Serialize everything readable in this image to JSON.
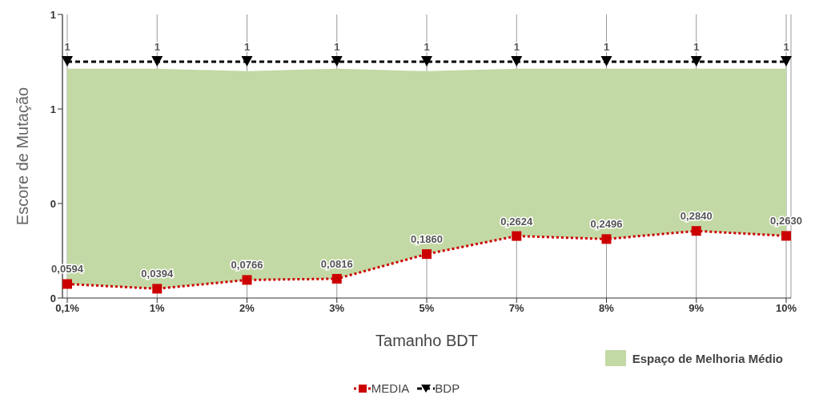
{
  "chart_data": {
    "type": "line",
    "xlabel": "Tamanho BDT",
    "ylabel": "Escore de Mutação",
    "categories": [
      "0,1%",
      "1%",
      "2%",
      "3%",
      "5%",
      "7%",
      "8%",
      "9%",
      "10%"
    ],
    "series": [
      {
        "type": "area",
        "name": "Espaço de Melhoria Médio",
        "color": "#c3d9a5",
        "values": [
          0.97,
          0.97,
          0.96,
          0.97,
          0.96,
          0.97,
          0.97,
          0.97,
          0.97
        ]
      },
      {
        "name": "MEDIA",
        "color": "#cc0000",
        "marker": "square",
        "line_style": "dotted",
        "values": [
          0.0594,
          0.0394,
          0.0766,
          0.0816,
          0.186,
          0.2624,
          0.2496,
          0.284,
          0.263
        ],
        "value_labels": [
          "0,0594",
          "0,0394",
          "0,0766",
          "0,0816",
          "0,1860",
          "0,2624",
          "0,2496",
          "0,2840",
          "0,2630"
        ]
      },
      {
        "name": "BDP",
        "color": "#000000",
        "marker": "triangle",
        "line_style": "dashed",
        "values": [
          1,
          1,
          1,
          1,
          1,
          1,
          1,
          1,
          1
        ],
        "value_labels": [
          "1",
          "1",
          "1",
          "1",
          "1",
          "1",
          "1",
          "1",
          "1"
        ]
      }
    ],
    "ylim": [
      0,
      1.2
    ],
    "yticks": [
      {
        "value": 0,
        "label": "0"
      },
      {
        "value": 0.4,
        "label": "0"
      },
      {
        "value": 0.8,
        "label": "1"
      },
      {
        "value": 1.2,
        "label": "1"
      }
    ],
    "grid": "x",
    "legend": "bottom"
  }
}
